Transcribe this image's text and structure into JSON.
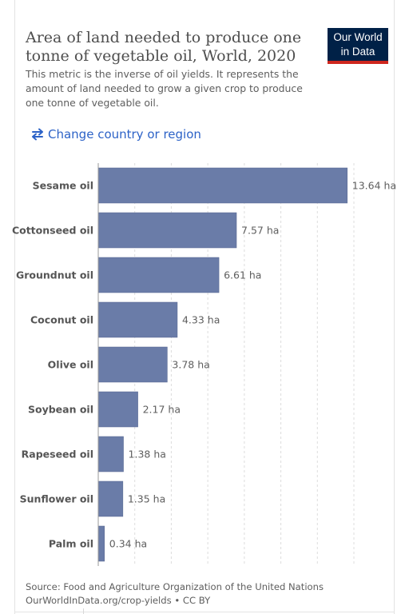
{
  "header": {
    "title": "Area of land needed to produce one tonne of vegetable oil, World, 2020",
    "subtitle": "This metric is the inverse of oil yields. It represents the amount of land needed to grow a given crop to produce one tonne of vegetable oil.",
    "logo_line1": "Our World",
    "logo_line2": "in Data"
  },
  "controls": {
    "change_country_label": "Change country or region",
    "change_icon": "swap-arrows-icon"
  },
  "footer": {
    "source_text": "Source: Food and Agriculture Organization of the United Nations",
    "url_text": "OurWorldInData.org/crop-yields",
    "separator": " • ",
    "license": "CC BY"
  },
  "colors": {
    "bar": "#6a7ca8",
    "bar_stroke": "#56678f",
    "logo_bg": "#002147",
    "logo_accent": "#ce261e",
    "link": "#2c62c7"
  },
  "chart_data": {
    "type": "bar",
    "orientation": "horizontal",
    "categories": [
      "Sesame oil",
      "Cottonseed oil",
      "Groundnut oil",
      "Coconut oil",
      "Olive oil",
      "Soybean oil",
      "Rapeseed oil",
      "Sunflower oil",
      "Palm oil"
    ],
    "values": [
      13.64,
      7.57,
      6.61,
      4.33,
      3.78,
      2.17,
      1.38,
      1.35,
      0.34
    ],
    "value_labels": [
      "13.64 ha",
      "7.57 ha",
      "6.61 ha",
      "4.33 ha",
      "3.78 ha",
      "2.17 ha",
      "1.38 ha",
      "1.35 ha",
      "0.34 ha"
    ],
    "unit": "ha",
    "xlim": [
      0,
      14
    ],
    "grid": true,
    "title": "Area of land needed to produce one tonne of vegetable oil, World, 2020"
  }
}
